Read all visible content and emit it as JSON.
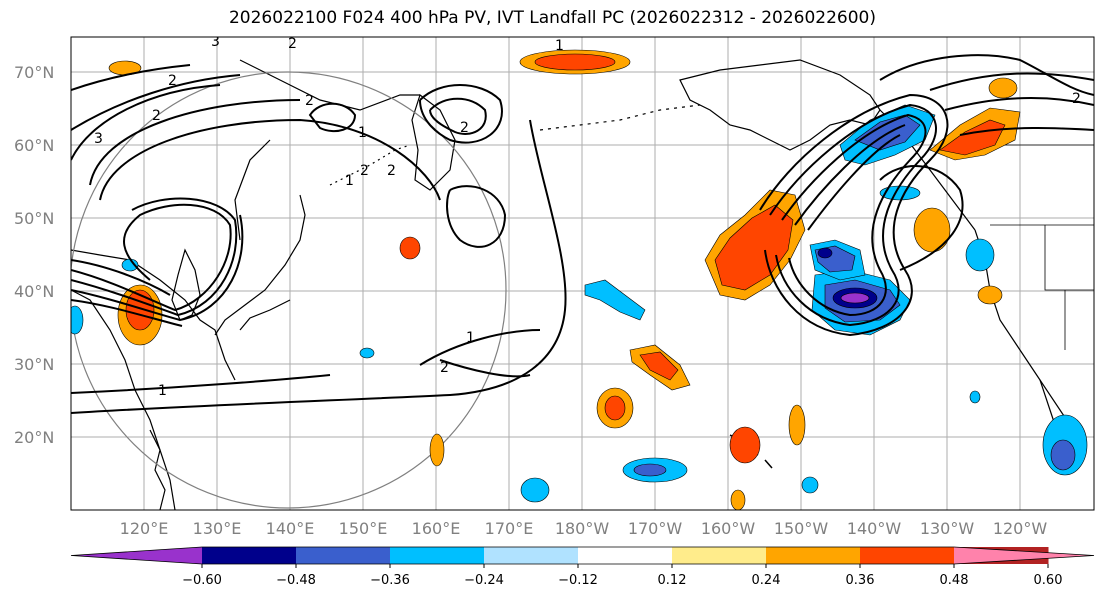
{
  "title": "2026022100 F024 400 hPa PV, IVT Landfall PC (2026022312 - 2026022600)",
  "map": {
    "lat_labels": [
      "70°N",
      "60°N",
      "50°N",
      "40°N",
      "30°N",
      "20°N"
    ],
    "lon_labels": [
      "120°E",
      "130°E",
      "140°E",
      "150°E",
      "160°E",
      "170°E",
      "180°W",
      "170°W",
      "160°W",
      "150°W",
      "140°W",
      "130°W",
      "120°W"
    ],
    "contour_labels": [
      "1",
      "1",
      "1",
      "1",
      "1",
      "2",
      "2",
      "2",
      "2",
      "2",
      "2",
      "2",
      "3",
      "3",
      "2",
      "2"
    ]
  },
  "colorbar": {
    "levels": [
      "−0.60",
      "−0.48",
      "−0.36",
      "−0.24",
      "−0.12",
      "0.12",
      "0.24",
      "0.36",
      "0.48",
      "0.60"
    ],
    "colors": [
      "#9932cc",
      "#00008b",
      "#3a5fcd",
      "#00bfff",
      "#b0e2ff",
      "#ffffff",
      "#ffec8b",
      "#ffa500",
      "#ff4500",
      "#b22222",
      "#ff82ab"
    ]
  }
}
